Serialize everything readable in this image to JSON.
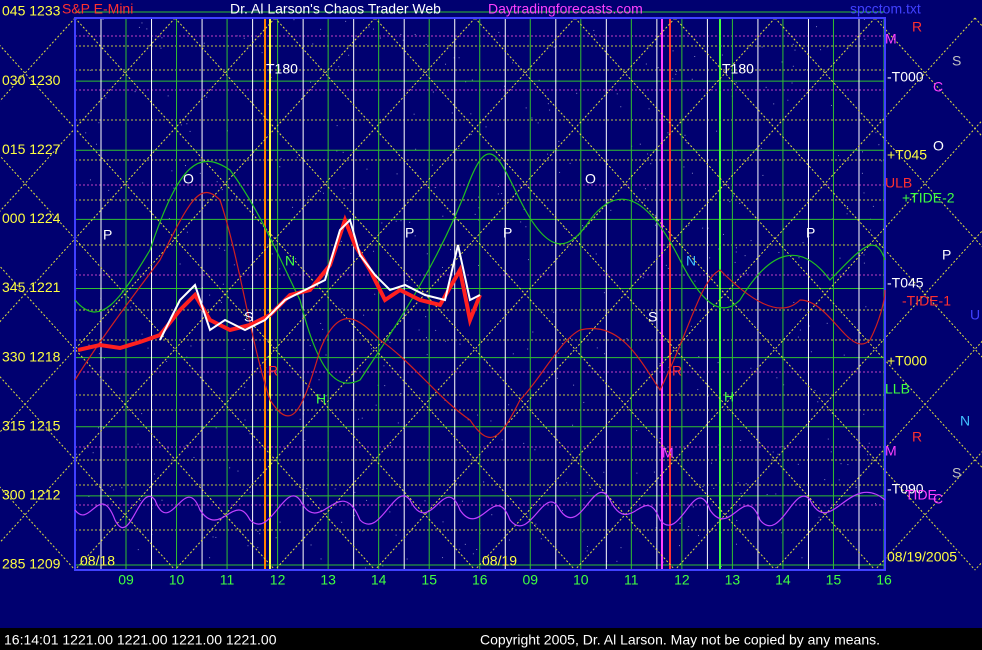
{
  "header": {
    "instrument": "S&P E-Mini",
    "title": "Dr. Al Larson's Chaos Trader Web",
    "site": "Daytradingforecasts.com",
    "file": "spcctom.txt"
  },
  "left_labels": [
    "045 1233",
    "030 1230",
    "015 1227",
    "000 1224",
    "345 1221",
    "330 1218",
    "315 1215",
    "300 1212",
    "285 1209"
  ],
  "right_labels": [
    {
      "text": "M",
      "color": "#ff40ff"
    },
    {
      "text": "R",
      "color": "#ff3030"
    },
    {
      "text": "S",
      "color": "#c0c0c0"
    },
    {
      "text": "-T000",
      "color": "#ffffff"
    },
    {
      "text": "C",
      "color": "#ff40ff"
    },
    {
      "text": "O",
      "color": "#ffffff"
    },
    {
      "text": "+T045",
      "color": "#ffff40"
    },
    {
      "text": "ULB",
      "color": "#ff3030"
    },
    {
      "text": "+TIDE-2",
      "color": "#40ff40"
    },
    {
      "text": "P",
      "color": "#ffffff"
    },
    {
      "text": "-T045",
      "color": "#ffffff"
    },
    {
      "text": "-TIDE-1",
      "color": "#ff3030"
    },
    {
      "text": "U",
      "color": "#4040ff"
    },
    {
      "text": "+T000",
      "color": "#ffff40"
    },
    {
      "text": "LLB",
      "color": "#40ff40"
    },
    {
      "text": "N",
      "color": "#40c0ff"
    },
    {
      "text": "R",
      "color": "#ff3030"
    },
    {
      "text": "M",
      "color": "#ff40ff"
    },
    {
      "text": "S",
      "color": "#c0c0c0"
    },
    {
      "text": "-T090",
      "color": "#ffffff"
    },
    {
      "text": "TIDE",
      "color": "#ff40ff"
    },
    {
      "text": "C",
      "color": "#ff40ff"
    },
    {
      "text": "08/19/2005",
      "color": "#ffff40"
    }
  ],
  "x_labels": [
    "09",
    "10",
    "11",
    "12",
    "13",
    "14",
    "15",
    "16",
    "09",
    "10",
    "11",
    "12",
    "13",
    "14",
    "15",
    "16"
  ],
  "dates": [
    "08/18",
    "08/19"
  ],
  "chart_labels": [
    "T180",
    "T180",
    "O",
    "O",
    "P",
    "P",
    "P",
    "P",
    "N",
    "N",
    "S",
    "S",
    "R",
    "R",
    "H",
    "H",
    "M"
  ],
  "footer": {
    "quote": "16:14:01  1221.00 1221.00 1221.00 1221.00",
    "copyright": "Copyright 2005, Dr. Al Larson. May not be copied by any means."
  }
}
